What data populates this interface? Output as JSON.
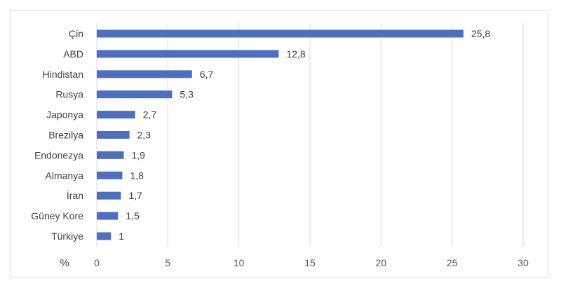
{
  "chart_data": {
    "type": "bar",
    "orientation": "horizontal",
    "categories": [
      "Çin",
      "ABD",
      "Hindistan",
      "Rusya",
      "Japonya",
      "Brezilya",
      "Endonezya",
      "Almanya",
      "İran",
      "Güney Kore",
      "Türkiye"
    ],
    "values": [
      25.8,
      12.8,
      6.7,
      5.3,
      2.7,
      2.3,
      1.9,
      1.8,
      1.7,
      1.5,
      1
    ],
    "value_labels": [
      "25,8",
      "12,8",
      "6,7",
      "5,3",
      "2,7",
      "2,3",
      "1,9",
      "1,8",
      "1,7",
      "1,5",
      "1"
    ],
    "xlabel": "%",
    "ylabel": "",
    "xlim": [
      0,
      30
    ],
    "xticks": [
      0,
      5,
      10,
      15,
      20,
      25,
      30
    ],
    "xtick_labels": [
      "0",
      "5",
      "10",
      "15",
      "20",
      "25",
      "30"
    ],
    "grid": "vertical",
    "bar_color": "#4e6ebf",
    "grid_color": "#d9d9d9"
  }
}
